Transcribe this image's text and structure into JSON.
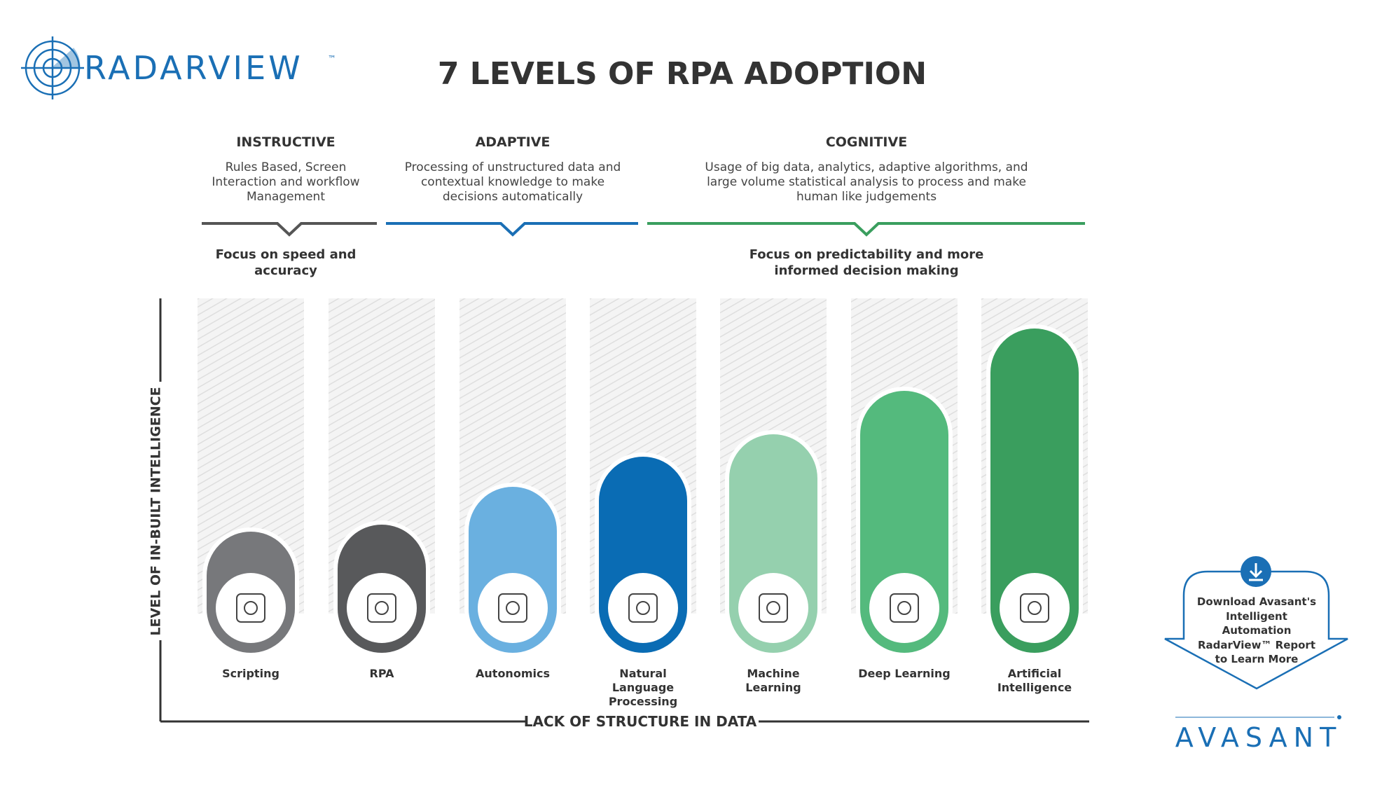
{
  "header": {
    "brand": "RADARVIEW",
    "trademark": "™",
    "title": "7 LEVELS OF RPA ADOPTION"
  },
  "groups": [
    {
      "name": "INSTRUCTIVE",
      "description": "Rules Based, Screen Interaction and workflow Management",
      "focus": "Focus on speed and accuracy"
    },
    {
      "name": "ADAPTIVE",
      "description": "Processing of unstructured data and contextual knowledge to make decisions automatically"
    },
    {
      "name": "COGNITIVE",
      "description": "Usage of big data, analytics, adaptive algorithms, and large volume statistical analysis to process and make human like judgements",
      "focus": "Focus on predictability and more informed decision making"
    }
  ],
  "levels": [
    "Scripting",
    "RPA",
    "Autonomics",
    "Natural Language Processing",
    "Machine Learning",
    "Deep Learning",
    "Artificial Intelligence"
  ],
  "axes": {
    "y_label": "LEVEL OF IN-BUILT INTELLIGENCE",
    "x_label": "LACK OF STRUCTURE IN DATA"
  },
  "callout": "Download Avasant's Intelligent Automation RadarView™ Report to Learn More",
  "footer": {
    "brand": "AVASANT"
  }
}
